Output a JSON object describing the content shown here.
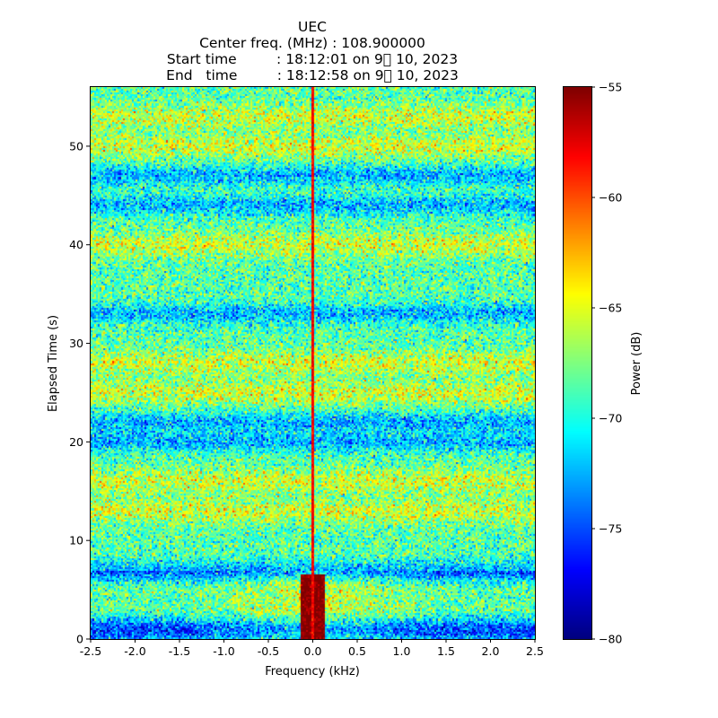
{
  "chart_data": {
    "type": "heatmap",
    "title_lines": [
      "UEC",
      "Center freq. (MHz) : 108.900000",
      "Start time         : 18:12:01 on 9\u0000 10, 2023",
      "End   time         : 18:12:58 on 9\u0000 10, 2023"
    ],
    "xlabel": "Frequency (kHz)",
    "ylabel": "Elapsed Time (s)",
    "xlim": [
      -2.5,
      2.5
    ],
    "ylim": [
      0,
      56
    ],
    "x_ticks": [
      -2.5,
      -2.0,
      -1.5,
      -1.0,
      -0.5,
      0.0,
      0.5,
      1.0,
      1.5,
      2.0,
      2.5
    ],
    "x_tick_labels": [
      "-2.5",
      "-2.0",
      "-1.5",
      "-1.0",
      "-0.5",
      "0.0",
      "0.5",
      "1.0",
      "1.5",
      "2.0",
      "2.5"
    ],
    "y_ticks": [
      0,
      10,
      20,
      30,
      40,
      50
    ],
    "y_tick_labels": [
      "0",
      "10",
      "20",
      "30",
      "40",
      "50"
    ],
    "colorbar": {
      "label": "Power (dB)",
      "colormap": "jet",
      "range": [
        -80,
        -55
      ],
      "ticks": [
        -80,
        -75,
        -70,
        -65,
        -60,
        -55
      ],
      "tick_labels": [
        "−80",
        "−75",
        "−70",
        "−65",
        "−60",
        "−55"
      ]
    },
    "features": {
      "carrier_line_khz": 0.0,
      "strong_signal_burst": {
        "freq_range_khz": [
          -0.15,
          0.15
        ],
        "time_range_s": [
          0,
          6.5
        ],
        "power_db": -55
      },
      "bright_bands_time_s": [
        3,
        5,
        13,
        16,
        25,
        28,
        40,
        50,
        53
      ],
      "dim_bands_time_s": [
        1,
        7,
        20,
        22,
        33,
        44,
        47
      ]
    }
  }
}
